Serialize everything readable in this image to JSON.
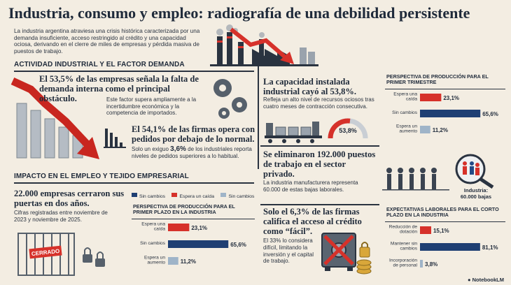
{
  "title": "Industria, consumo y empleo: radiografía de una debilidad persistente",
  "intro": "La industria argentina atraviesa una crisis histórica caracterizada por una demanda insuficiente, acceso restringido al crédito y una capacidad ociosa, derivando en el clerre de miles de empresas y pérdida masiva de puestos de trabajo.",
  "colors": {
    "navy": "#1f3f73",
    "red": "#d6312a",
    "lightblue": "#9fb4c8",
    "blue": "#234a86",
    "dark": "#1f2a3a"
  },
  "section1": {
    "heading": "ACTIVIDAD INDUSTRIAL Y EL FACTOR DEMANDA",
    "stat1_big": "El 53,5% de las empresas señala la falta de demanda interna como el principal obstáculo.",
    "stat1_small": "Este factor supera ampliamente a la incertidumbre económica y la competencia de importados.",
    "stat2_big": "El 54,1% de las firmas opera con pedidos por debajo de lo normal.",
    "stat2_small_pre": "Solo un exiguo ",
    "stat2_highlight": "3,6%",
    "stat2_small_post": " de los industriales reporta niveles de pedidos superiores a lo habitual.",
    "capacity_big": "La capacidad instalada industrial cayó al 53,8%.",
    "capacity_small": "Refleja un alto nivel de recursos ociosos tras cuatro meses de contracción consecutiva.",
    "gauge_label": "53,8%",
    "jobs_big": "Se eliminaron 192.000 puestos de trabajo en el sector privado.",
    "jobs_small": "La industria manufacturera representa 60.000 de estas bajas laborales.",
    "jobs_badge": "Industria:\n60.000 bajas"
  },
  "section2": {
    "heading": "IMPACTO EN EL EMPLEO Y TEJIDO EMPRESARIAL",
    "closed_big": "22.000 empresas cerraron sus puertas en dos años.",
    "closed_small": "Cifras registradas entre noviembre de 2023 y noviembre de 2025.",
    "sign_text": "CERRADO",
    "legend": [
      "Sin cambios",
      "Espera un caída",
      "Sin cambios"
    ],
    "credit_big": "Solo el 6,3% de las firmas califica el acceso al crédito como “fácil”.",
    "credit_small": "El 33% lo considera difícil, limitando la inversión y el capital de trabajo."
  },
  "chart_data": [
    {
      "type": "bar",
      "orientation": "horizontal",
      "title": "PERSPECTIVA DE PRODUCCIÓN PARA EL PRIMER TRIMESTRE",
      "categories": [
        "Espera una caída",
        "Sin cambios",
        "Espera un aumento"
      ],
      "values": [
        23.1,
        65.6,
        11.2
      ],
      "labels": [
        "23,1%",
        "65,6%",
        "11,2%"
      ],
      "colors": [
        "#d6312a",
        "#1f3f73",
        "#9fb4c8"
      ],
      "xlim": [
        0,
        70
      ]
    },
    {
      "type": "bar",
      "orientation": "horizontal",
      "title": "PERSPECTIVA DE PRODUCCIÓN PARA EL PRIMER PLAZO EN LA INDUSTRIA",
      "categories": [
        "Espera una caída",
        "Sin cambios",
        "Espera un aumento"
      ],
      "values": [
        23.1,
        65.6,
        11.2
      ],
      "labels": [
        "23,1%",
        "65,6%",
        "11,2%"
      ],
      "colors": [
        "#d6312a",
        "#1f3f73",
        "#9fb4c8"
      ],
      "xlim": [
        0,
        70
      ]
    },
    {
      "type": "bar",
      "orientation": "horizontal",
      "title": "EXPECTATIVAS LABORALES PARA EL CORTO PLAZO EN LA INDUSTRIA",
      "categories": [
        "Reducción de dotación",
        "Mantener sin cambios",
        "Incorporación de personal"
      ],
      "values": [
        15.1,
        81.1,
        3.8
      ],
      "labels": [
        "15,1%",
        "81,1%",
        "3,8%"
      ],
      "colors": [
        "#d6312a",
        "#1f3f73",
        "#9fb4c8"
      ],
      "xlim": [
        0,
        85
      ]
    },
    {
      "type": "gauge",
      "title": "La capacidad instalada industrial",
      "values": [
        53.8
      ],
      "labels": [
        "53,8%"
      ],
      "ylim": [
        0,
        100
      ]
    }
  ],
  "brand": "NotebookLM"
}
